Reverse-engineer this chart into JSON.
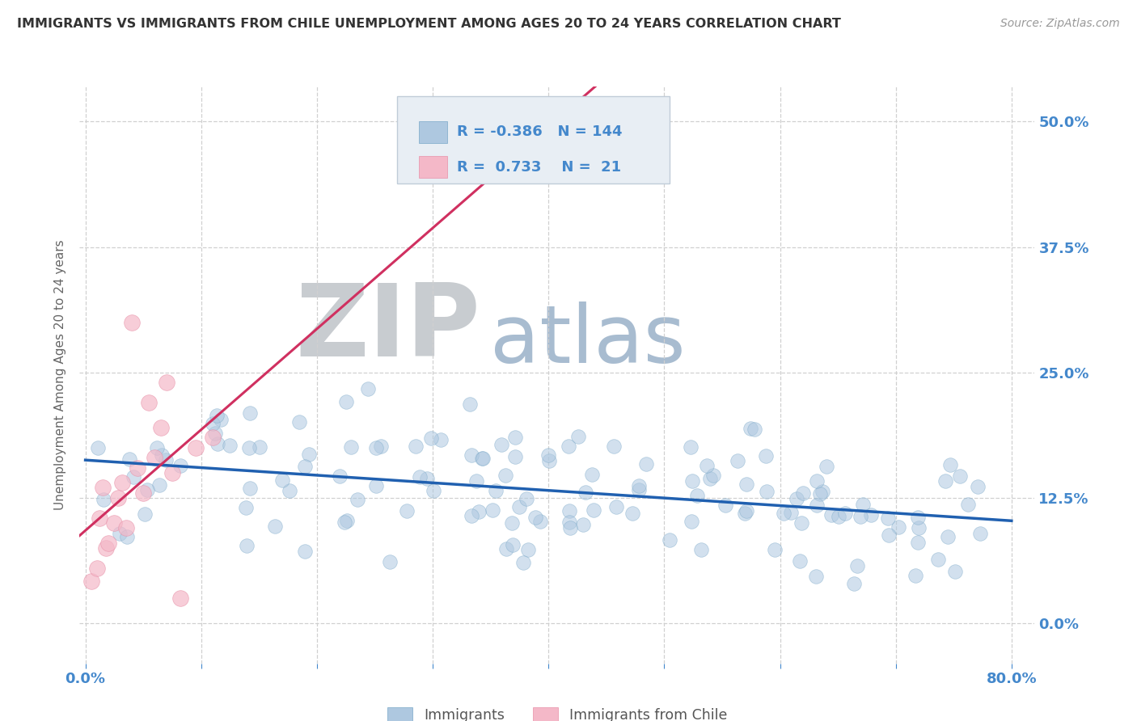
{
  "title": "IMMIGRANTS VS IMMIGRANTS FROM CHILE UNEMPLOYMENT AMONG AGES 20 TO 24 YEARS CORRELATION CHART",
  "source": "Source: ZipAtlas.com",
  "ylabel": "Unemployment Among Ages 20 to 24 years",
  "xlim": [
    -0.005,
    0.82
  ],
  "ylim": [
    -0.04,
    0.535
  ],
  "yticks": [
    0.0,
    0.125,
    0.25,
    0.375,
    0.5
  ],
  "ytick_labels": [
    "0.0%",
    "12.5%",
    "25.0%",
    "37.5%",
    "50.0%"
  ],
  "xticks": [
    0.0,
    0.1,
    0.2,
    0.3,
    0.4,
    0.5,
    0.6,
    0.7,
    0.8
  ],
  "xtick_labels": [
    "0.0%",
    "",
    "",
    "",
    "",
    "",
    "",
    "",
    "80.0%"
  ],
  "blue_fill": "#aec8e0",
  "pink_fill": "#f4b8c8",
  "blue_edge": "#7aa8c8",
  "pink_edge": "#e890a8",
  "blue_line_color": "#2060b0",
  "pink_line_color": "#d03060",
  "R_blue": -0.386,
  "N_blue": 144,
  "R_pink": 0.733,
  "N_pink": 21,
  "watermark_zip": "ZIP",
  "watermark_atlas": "atlas",
  "watermark_zip_color": "#c8ccd0",
  "watermark_atlas_color": "#a8bcd0",
  "grid_color": "#d0d0d0",
  "title_color": "#333333",
  "axis_label_color": "#666666",
  "tick_color": "#4488cc",
  "legend_text_color": "#4488cc",
  "legend_box_color": "#e8eef4",
  "source_color": "#999999"
}
